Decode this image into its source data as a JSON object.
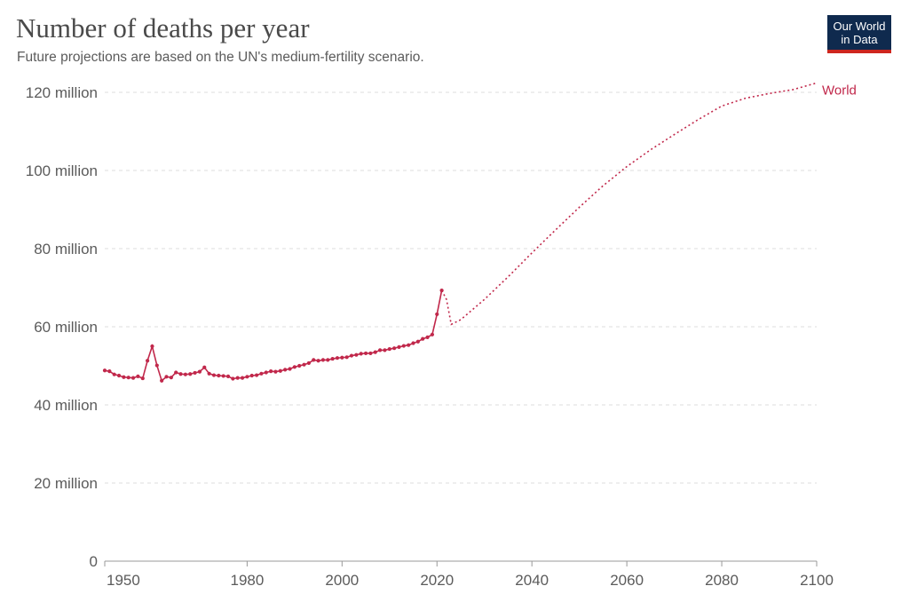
{
  "header": {
    "title": "Number of deaths per year",
    "subtitle": "Future projections are based on the UN's medium-fertility scenario."
  },
  "logo": {
    "line1": "Our World",
    "line2": "in Data",
    "bg_color": "#0f2a4e",
    "accent_color": "#ce261e"
  },
  "chart_data": {
    "type": "line",
    "title": "Number of deaths per year",
    "subtitle": "Future projections are based on the UN's medium-fertility scenario.",
    "xlabel": "",
    "ylabel": "",
    "xlim": [
      1950,
      2100
    ],
    "ylim": [
      0,
      120000000
    ],
    "x_ticks": [
      {
        "value": 1950,
        "label": "1950"
      },
      {
        "value": 1980,
        "label": "1980"
      },
      {
        "value": 2000,
        "label": "2000"
      },
      {
        "value": 2020,
        "label": "2020"
      },
      {
        "value": 2040,
        "label": "2040"
      },
      {
        "value": 2060,
        "label": "2060"
      },
      {
        "value": 2080,
        "label": "2080"
      },
      {
        "value": 2100,
        "label": "2100"
      }
    ],
    "y_ticks": [
      {
        "value": 0,
        "label": "0"
      },
      {
        "value": 20000000,
        "label": "20 million"
      },
      {
        "value": 40000000,
        "label": "40 million"
      },
      {
        "value": 60000000,
        "label": "60 million"
      },
      {
        "value": 80000000,
        "label": "80 million"
      },
      {
        "value": 100000000,
        "label": "100 million"
      },
      {
        "value": 120000000,
        "label": "120 million"
      }
    ],
    "grid": "horizontal dashed",
    "series": [
      {
        "name": "World",
        "color": "#c1284b",
        "historical": {
          "x": [
            1950,
            1951,
            1952,
            1953,
            1954,
            1955,
            1956,
            1957,
            1958,
            1959,
            1960,
            1961,
            1962,
            1963,
            1964,
            1965,
            1966,
            1967,
            1968,
            1969,
            1970,
            1971,
            1972,
            1973,
            1974,
            1975,
            1976,
            1977,
            1978,
            1979,
            1980,
            1981,
            1982,
            1983,
            1984,
            1985,
            1986,
            1987,
            1988,
            1989,
            1990,
            1991,
            1992,
            1993,
            1994,
            1995,
            1996,
            1997,
            1998,
            1999,
            2000,
            2001,
            2002,
            2003,
            2004,
            2005,
            2006,
            2007,
            2008,
            2009,
            2010,
            2011,
            2012,
            2013,
            2014,
            2015,
            2016,
            2017,
            2018,
            2019,
            2020,
            2021
          ],
          "y": [
            48.8,
            48.6,
            47.8,
            47.5,
            47.1,
            47.0,
            46.9,
            47.3,
            46.8,
            51.3,
            55.0,
            50.1,
            46.2,
            47.2,
            47.0,
            48.3,
            47.9,
            47.8,
            47.9,
            48.2,
            48.5,
            49.6,
            48.0,
            47.6,
            47.5,
            47.4,
            47.3,
            46.7,
            46.9,
            46.9,
            47.2,
            47.5,
            47.6,
            48.0,
            48.3,
            48.6,
            48.5,
            48.7,
            49.0,
            49.2,
            49.7,
            50.0,
            50.3,
            50.7,
            51.5,
            51.3,
            51.5,
            51.5,
            51.8,
            52.0,
            52.1,
            52.2,
            52.6,
            52.8,
            53.1,
            53.2,
            53.2,
            53.5,
            54.0,
            54.0,
            54.3,
            54.5,
            54.8,
            55.1,
            55.3,
            55.8,
            56.2,
            56.9,
            57.3,
            58.0,
            63.2,
            69.3
          ]
        },
        "projection": {
          "x": [
            2021,
            2022,
            2023,
            2025,
            2030,
            2035,
            2040,
            2045,
            2050,
            2055,
            2060,
            2065,
            2070,
            2075,
            2080,
            2085,
            2090,
            2095,
            2100
          ],
          "y": [
            69.3,
            67.0,
            60.6,
            61.8,
            67.0,
            72.8,
            78.9,
            84.8,
            90.6,
            96.1,
            101.0,
            105.3,
            109.2,
            113.0,
            116.5,
            118.5,
            119.7,
            120.7,
            122.4
          ]
        },
        "y_unit": "million"
      }
    ]
  }
}
